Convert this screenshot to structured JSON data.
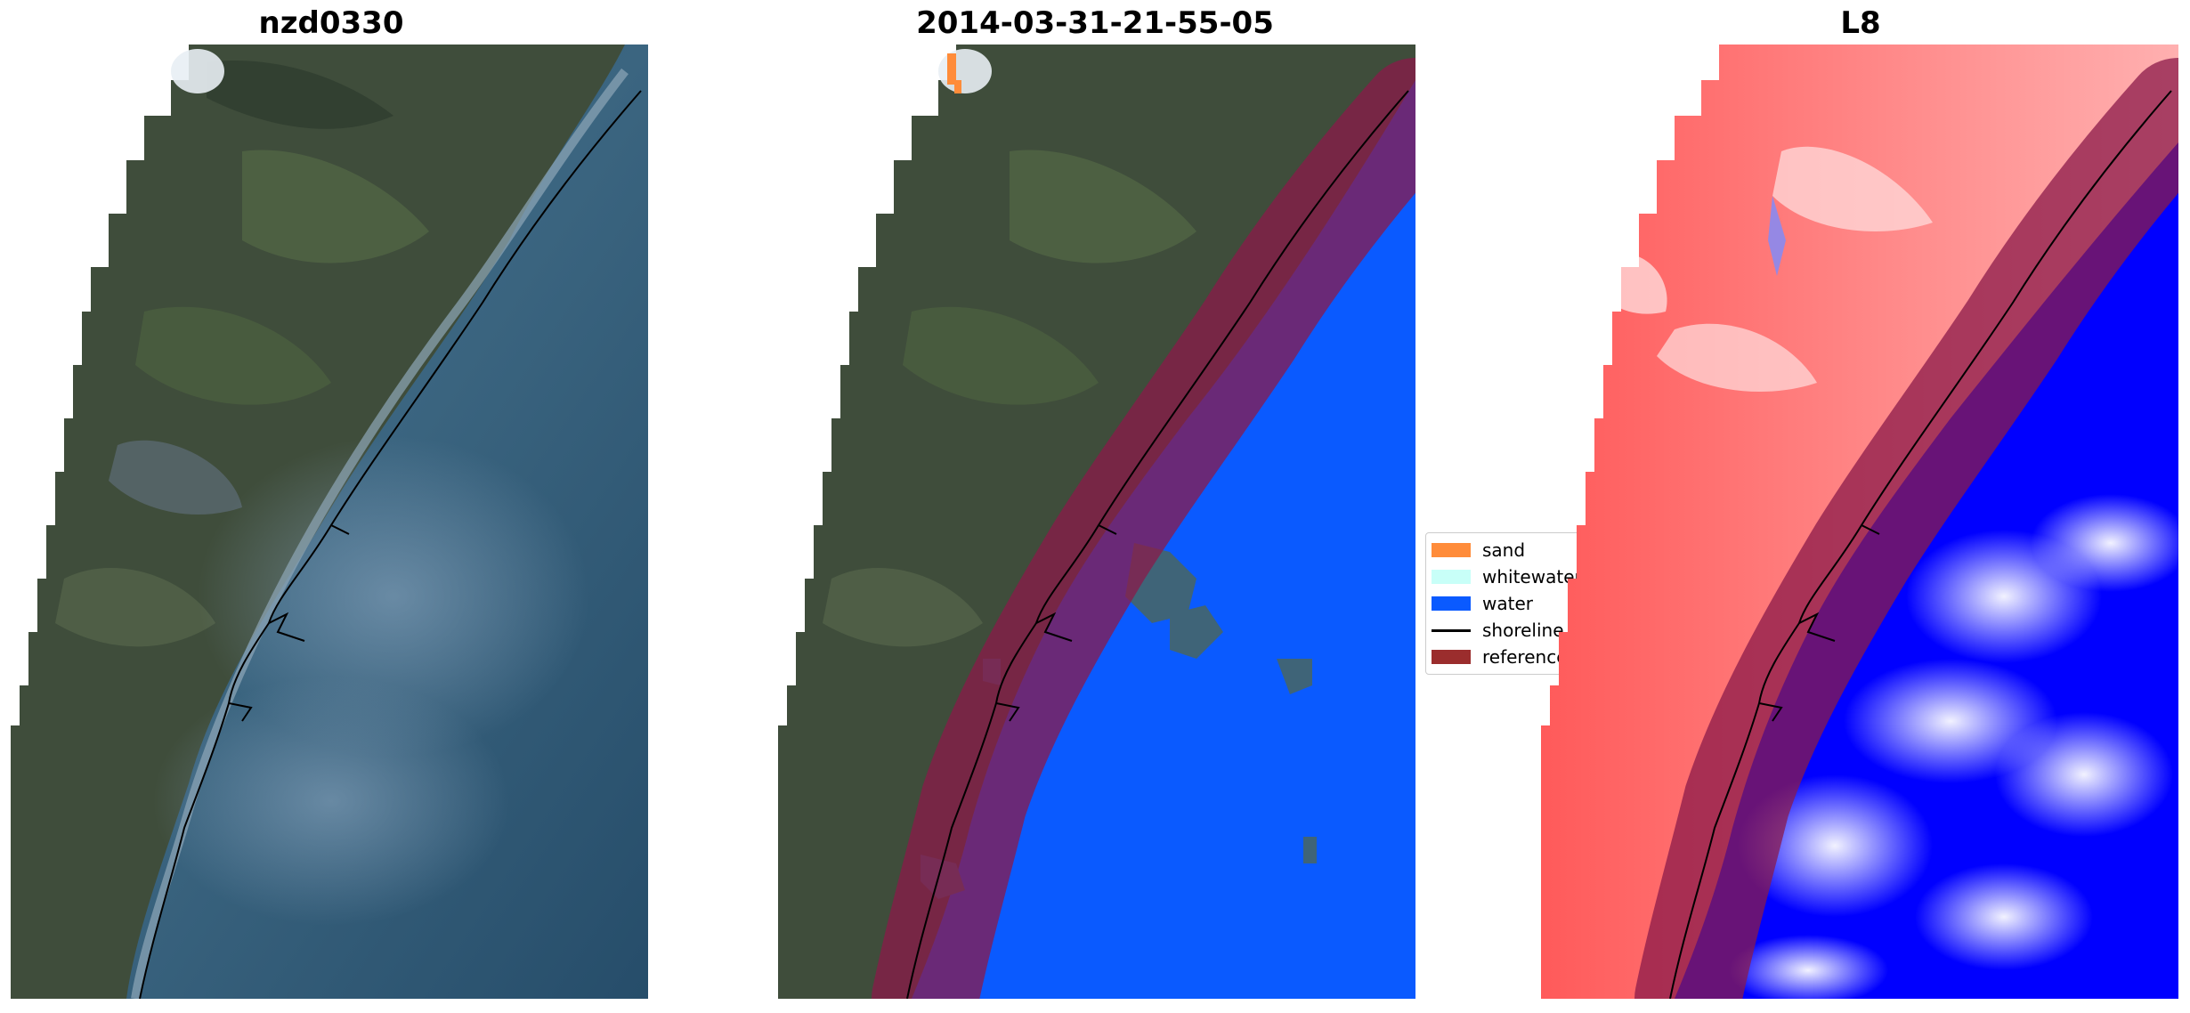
{
  "panels": [
    {
      "title": "nzd0330"
    },
    {
      "title": "2014-03-31-21-55-05"
    },
    {
      "title": "L8"
    }
  ],
  "legend": {
    "items": [
      {
        "label": "sand",
        "color": "#ff8c3a"
      },
      {
        "label": "whitewater",
        "color": "#c8fff8"
      },
      {
        "label": "water",
        "color": "#0a5aff"
      },
      {
        "label": "shoreline",
        "color": "#000000"
      },
      {
        "label": "reference",
        "color": "#9b2d2d"
      }
    ]
  },
  "colors": {
    "rgb_land": "#3e4a3a",
    "rgb_water": "#2a4d66",
    "water_class": "#0a5aff",
    "reference_buffer": "#8b1a4a",
    "index_land": "#ff4d4d",
    "index_water": "#0000ff"
  }
}
